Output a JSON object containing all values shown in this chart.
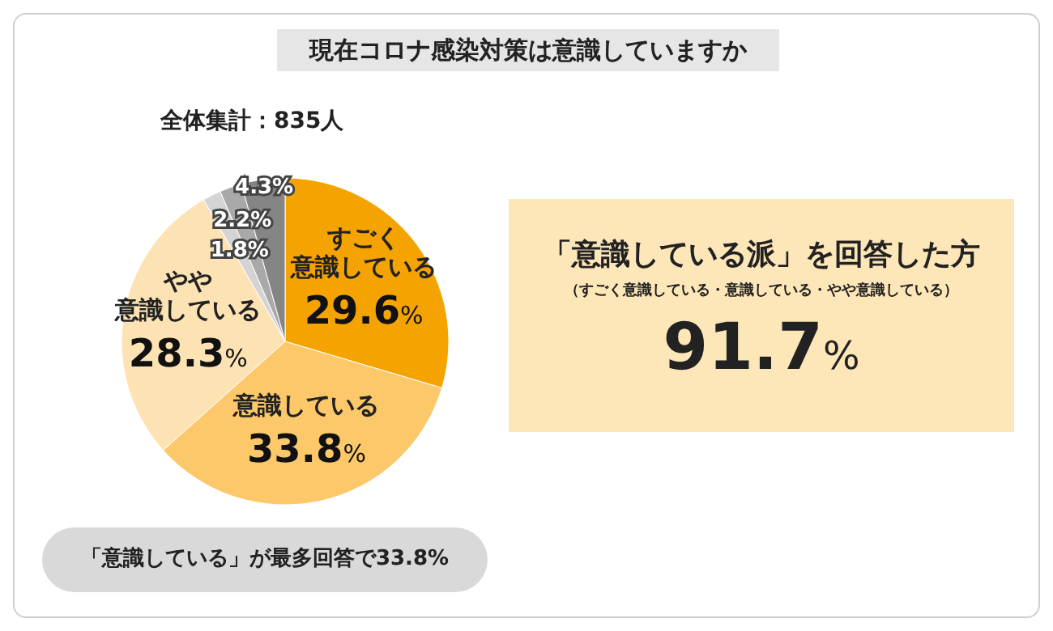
{
  "chart_data": {
    "type": "pie",
    "title": "現在コロナ感染対策は意識していますか",
    "subtitle": "全体集計：835人",
    "categories": [
      "すごく意識している",
      "意識している",
      "やや意識している",
      null,
      null,
      null
    ],
    "values": [
      29.6,
      33.8,
      28.3,
      1.8,
      2.2,
      4.3
    ],
    "value_labels": [
      "29.6%",
      "33.8%",
      "28.3%",
      "1.8%",
      "2.2%",
      "4.3%"
    ],
    "colors": [
      "#f5a300",
      "#fcc86a",
      "#fde3b4",
      "#d4d4d4",
      "#a9a9a9",
      "#858585"
    ],
    "annotations": [
      "「意識している派」を回答した方",
      "（すごく意識している・意識している・やや意識している）",
      "91.7%",
      "「意識している」が最多回答で33.8%"
    ]
  }
}
